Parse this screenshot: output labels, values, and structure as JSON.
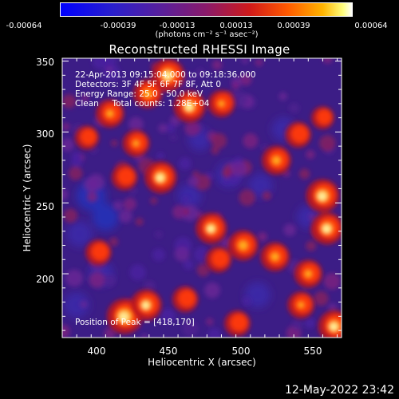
{
  "colors": {
    "background": "#000000",
    "text": "#ffffff"
  },
  "colorbar": {
    "tick_labels": [
      "-0.00064",
      "-0.00039",
      "-0.00013",
      "0.00013",
      "0.00039",
      "0.00064"
    ],
    "unit_label": "(photons cm⁻² s⁻¹ asec⁻²)"
  },
  "chart_data": {
    "type": "heatmap",
    "title": "Reconstructed RHESSI Image",
    "xlabel": "Heliocentric X (arcsec)",
    "ylabel": "Heliocentric Y (arcsec)",
    "xlim": [
      375,
      568
    ],
    "ylim": [
      155,
      352
    ],
    "x_ticks": [
      400,
      450,
      500,
      550
    ],
    "y_ticks": [
      200,
      250,
      300,
      350
    ],
    "value_range": [
      -0.00064,
      0.00064
    ],
    "colormap": "blue-purple-red-yellow-white",
    "annotations": {
      "time_range": "22-Apr-2013 09:15:04.000 to 09:18:36.000",
      "detectors": "Detectors: 3F 4F 5F 6F 7F 8F, Att 0",
      "energy": "Energy Range: 25.0 - 50.0 keV",
      "clean": "Clean     Total counts: 1.28E+04",
      "position": "Position of Peak = [418,170]"
    },
    "bright_regions": [
      {
        "x": 418,
        "y": 170,
        "level": 1.0
      },
      {
        "x": 448,
        "y": 340,
        "level": 0.9
      },
      {
        "x": 463,
        "y": 318,
        "level": 0.85
      },
      {
        "x": 434,
        "y": 327,
        "level": 0.7
      },
      {
        "x": 485,
        "y": 320,
        "level": 0.6
      },
      {
        "x": 408,
        "y": 313,
        "level": 0.65
      },
      {
        "x": 443,
        "y": 268,
        "level": 0.85
      },
      {
        "x": 426,
        "y": 292,
        "level": 0.6
      },
      {
        "x": 418,
        "y": 268,
        "level": 0.55
      },
      {
        "x": 523,
        "y": 280,
        "level": 0.7
      },
      {
        "x": 538,
        "y": 298,
        "level": 0.55
      },
      {
        "x": 555,
        "y": 255,
        "level": 0.9
      },
      {
        "x": 558,
        "y": 232,
        "level": 0.85
      },
      {
        "x": 478,
        "y": 232,
        "level": 0.8
      },
      {
        "x": 500,
        "y": 220,
        "level": 0.75
      },
      {
        "x": 522,
        "y": 212,
        "level": 0.7
      },
      {
        "x": 483,
        "y": 210,
        "level": 0.55
      },
      {
        "x": 545,
        "y": 200,
        "level": 0.65
      },
      {
        "x": 540,
        "y": 178,
        "level": 0.6
      },
      {
        "x": 563,
        "y": 163,
        "level": 0.85
      },
      {
        "x": 433,
        "y": 178,
        "level": 0.8
      },
      {
        "x": 460,
        "y": 182,
        "level": 0.55
      },
      {
        "x": 400,
        "y": 215,
        "level": 0.55
      },
      {
        "x": 392,
        "y": 296,
        "level": 0.45
      },
      {
        "x": 496,
        "y": 165,
        "level": 0.55
      },
      {
        "x": 555,
        "y": 310,
        "level": 0.4
      }
    ],
    "dark_regions": [
      {
        "x": 395,
        "y": 255,
        "level": 0.85
      },
      {
        "x": 405,
        "y": 240,
        "level": 0.7
      },
      {
        "x": 387,
        "y": 228,
        "level": 0.6
      },
      {
        "x": 402,
        "y": 200,
        "level": 0.55
      },
      {
        "x": 385,
        "y": 178,
        "level": 0.6
      },
      {
        "x": 463,
        "y": 255,
        "level": 0.5
      },
      {
        "x": 490,
        "y": 270,
        "level": 0.6
      },
      {
        "x": 528,
        "y": 302,
        "level": 0.5
      },
      {
        "x": 510,
        "y": 185,
        "level": 0.6
      },
      {
        "x": 512,
        "y": 262,
        "level": 0.5
      },
      {
        "x": 470,
        "y": 295,
        "level": 0.45
      },
      {
        "x": 545,
        "y": 240,
        "level": 0.45
      }
    ]
  },
  "footer": {
    "timestamp": "12-May-2022 23:42"
  }
}
